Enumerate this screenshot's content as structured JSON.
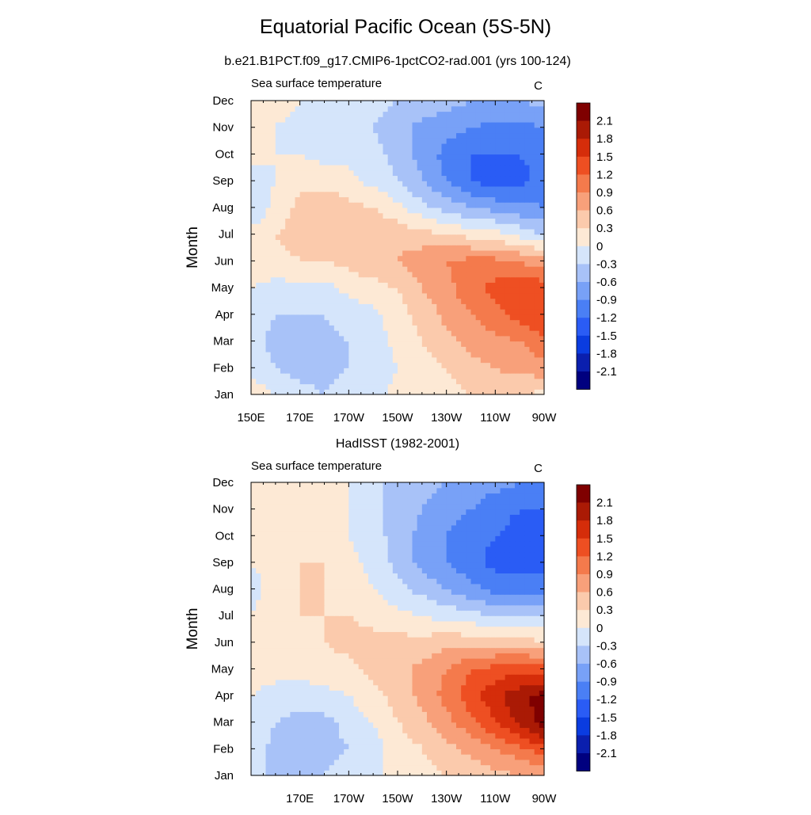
{
  "figure": {
    "title": "Equatorial Pacific Ocean (5S-5N)"
  },
  "chart_data": [
    {
      "type": "heatmap",
      "panel_title": "b.e21.B1PCT.f09_g17.CMIP6-1pctCO2-rad.001 (yrs 100-124)",
      "left_label": "Sea surface temperature",
      "right_label": "C",
      "ylabel": "Month",
      "xlabel": "",
      "x_ticks": [
        "150E",
        "170E",
        "170W",
        "150W",
        "130W",
        "110W",
        "90W"
      ],
      "y_ticks": [
        "Jan",
        "Feb",
        "Mar",
        "Apr",
        "May",
        "Jun",
        "Jul",
        "Aug",
        "Sep",
        "Oct",
        "Nov",
        "Dec"
      ],
      "x_range": [
        150,
        270
      ],
      "x_units": "degrees east longitude",
      "y_range": [
        0,
        11
      ],
      "colorbar_levels": [
        -2.1,
        -1.8,
        -1.5,
        -1.2,
        -0.9,
        -0.6,
        -0.3,
        0,
        0.3,
        0.6,
        0.9,
        1.2,
        1.5,
        1.8,
        2.1
      ],
      "colorbar_labels": [
        "2.1",
        "1.8",
        "1.5",
        "1.2",
        "0.9",
        "0.6",
        "0.3",
        "0",
        "-0.3",
        "-0.6",
        "-0.9",
        "-1.2",
        "-1.5",
        "-1.8",
        "-2.1"
      ],
      "grid_lon": [
        150,
        160,
        170,
        180,
        190,
        200,
        210,
        220,
        230,
        240,
        250,
        260,
        270
      ],
      "grid_months": [
        "Jan",
        "Feb",
        "Mar",
        "Apr",
        "May",
        "Jun",
        "Jul",
        "Aug",
        "Sep",
        "Oct",
        "Nov",
        "Dec"
      ],
      "values": [
        [
          0.2,
          0.0,
          -0.2,
          -0.3,
          -0.2,
          -0.1,
          0.1,
          0.1,
          0.2,
          0.3,
          0.4,
          0.3,
          0.2
        ],
        [
          -0.1,
          -0.3,
          -0.4,
          -0.4,
          -0.3,
          -0.2,
          0.0,
          0.2,
          0.3,
          0.5,
          0.6,
          0.7,
          0.8
        ],
        [
          -0.2,
          -0.4,
          -0.4,
          -0.4,
          -0.3,
          -0.2,
          0.1,
          0.3,
          0.5,
          0.7,
          0.8,
          0.9,
          1.1
        ],
        [
          -0.1,
          -0.3,
          -0.3,
          -0.3,
          -0.2,
          -0.1,
          0.2,
          0.4,
          0.7,
          0.9,
          1.1,
          1.3,
          1.5
        ],
        [
          0.0,
          -0.1,
          -0.1,
          -0.1,
          0.1,
          0.2,
          0.3,
          0.6,
          0.8,
          1.1,
          1.3,
          1.4,
          1.4
        ],
        [
          0.1,
          0.2,
          0.3,
          0.3,
          0.4,
          0.5,
          0.6,
          0.8,
          0.9,
          1.0,
          1.0,
          0.9,
          0.7
        ],
        [
          0.1,
          0.3,
          0.4,
          0.5,
          0.5,
          0.5,
          0.5,
          0.4,
          0.3,
          0.2,
          0.1,
          -0.1,
          -0.3
        ],
        [
          -0.3,
          0.1,
          0.4,
          0.5,
          0.4,
          0.3,
          0.1,
          -0.2,
          -0.4,
          -0.6,
          -0.7,
          -0.8,
          -0.9
        ],
        [
          -0.2,
          0.0,
          0.2,
          0.2,
          0.1,
          -0.1,
          -0.3,
          -0.6,
          -0.9,
          -1.2,
          -1.4,
          -1.3,
          -1.1
        ],
        [
          0.1,
          0.0,
          0.0,
          -0.1,
          -0.1,
          -0.2,
          -0.4,
          -0.7,
          -1.0,
          -1.2,
          -1.2,
          -1.2,
          -1.1
        ],
        [
          0.1,
          0.0,
          -0.1,
          -0.2,
          -0.2,
          -0.3,
          -0.5,
          -0.7,
          -0.8,
          -0.9,
          -1.0,
          -1.0,
          -0.9
        ],
        [
          0.2,
          0.1,
          0.0,
          -0.1,
          -0.2,
          -0.2,
          -0.3,
          -0.4,
          -0.5,
          -0.6,
          -0.6,
          -0.6,
          -0.5
        ]
      ]
    },
    {
      "type": "heatmap",
      "panel_title": "HadISST (1982-2001)",
      "left_label": "Sea surface temperature",
      "right_label": "C",
      "ylabel": "Month",
      "xlabel": "",
      "x_ticks": [
        "170E",
        "170W",
        "150W",
        "130W",
        "110W",
        "90W"
      ],
      "y_ticks": [
        "Jan",
        "Feb",
        "Mar",
        "Apr",
        "May",
        "Jun",
        "Jul",
        "Aug",
        "Sep",
        "Oct",
        "Nov",
        "Dec"
      ],
      "x_range": [
        150,
        270
      ],
      "x_units": "degrees east longitude",
      "y_range": [
        0,
        11
      ],
      "colorbar_levels": [
        -2.1,
        -1.8,
        -1.5,
        -1.2,
        -0.9,
        -0.6,
        -0.3,
        0,
        0.3,
        0.6,
        0.9,
        1.2,
        1.5,
        1.8,
        2.1
      ],
      "colorbar_labels": [
        "2.1",
        "1.8",
        "1.5",
        "1.2",
        "0.9",
        "0.6",
        "0.3",
        "0",
        "-0.3",
        "-0.6",
        "-0.9",
        "-1.2",
        "-1.5",
        "-1.8",
        "-2.1"
      ],
      "grid_lon": [
        150,
        160,
        170,
        180,
        190,
        200,
        210,
        220,
        230,
        240,
        250,
        260,
        270
      ],
      "grid_months": [
        "Jan",
        "Feb",
        "Mar",
        "Apr",
        "May",
        "Jun",
        "Jul",
        "Aug",
        "Sep",
        "Oct",
        "Nov",
        "Dec"
      ],
      "values": [
        [
          -0.2,
          -0.4,
          -0.4,
          -0.3,
          -0.2,
          -0.1,
          0.1,
          0.2,
          0.3,
          0.4,
          0.5,
          0.6,
          0.6
        ],
        [
          -0.1,
          -0.4,
          -0.4,
          -0.4,
          -0.3,
          -0.1,
          0.1,
          0.3,
          0.5,
          0.7,
          0.9,
          1.1,
          1.4
        ],
        [
          -0.1,
          -0.3,
          -0.4,
          -0.4,
          -0.2,
          0.0,
          0.3,
          0.5,
          0.8,
          1.1,
          1.5,
          1.9,
          2.3
        ],
        [
          0.0,
          -0.1,
          -0.2,
          -0.1,
          0.0,
          0.2,
          0.4,
          0.7,
          1.0,
          1.4,
          1.7,
          2.0,
          2.2
        ],
        [
          0.1,
          0.1,
          0.1,
          0.2,
          0.2,
          0.4,
          0.5,
          0.7,
          0.9,
          1.2,
          1.3,
          1.4,
          1.4
        ],
        [
          0.1,
          0.2,
          0.2,
          0.3,
          0.4,
          0.4,
          0.4,
          0.4,
          0.5,
          0.5,
          0.5,
          0.5,
          0.3
        ],
        [
          0.0,
          0.2,
          0.3,
          0.3,
          0.3,
          0.2,
          0.1,
          0.0,
          -0.1,
          -0.2,
          -0.3,
          -0.3,
          -0.3
        ],
        [
          -0.1,
          0.1,
          0.3,
          0.3,
          0.2,
          0.0,
          -0.2,
          -0.4,
          -0.6,
          -0.8,
          -1.0,
          -1.0,
          -1.0
        ],
        [
          0.0,
          0.1,
          0.3,
          0.3,
          0.1,
          -0.1,
          -0.4,
          -0.7,
          -0.9,
          -1.1,
          -1.3,
          -1.4,
          -1.4
        ],
        [
          0.1,
          0.1,
          0.2,
          0.2,
          0.0,
          -0.2,
          -0.4,
          -0.7,
          -0.9,
          -1.1,
          -1.2,
          -1.3,
          -1.3
        ],
        [
          0.1,
          0.1,
          0.1,
          0.1,
          0.0,
          -0.2,
          -0.4,
          -0.6,
          -0.8,
          -0.9,
          -1.1,
          -1.2,
          -1.2
        ],
        [
          0.1,
          0.1,
          0.1,
          0.1,
          0.0,
          -0.2,
          -0.4,
          -0.5,
          -0.6,
          -0.7,
          -0.8,
          -0.9,
          -0.9
        ]
      ]
    }
  ],
  "palette": [
    "#00007f",
    "#0a1fae",
    "#0a3ce0",
    "#2a5cf5",
    "#4a7ff5",
    "#78a1f7",
    "#a8c2f8",
    "#d5e5fb",
    "#fde9d5",
    "#fbcaac",
    "#f8a07a",
    "#f47a4c",
    "#ee4f22",
    "#d52d0a",
    "#aa1a05",
    "#7f0000"
  ]
}
